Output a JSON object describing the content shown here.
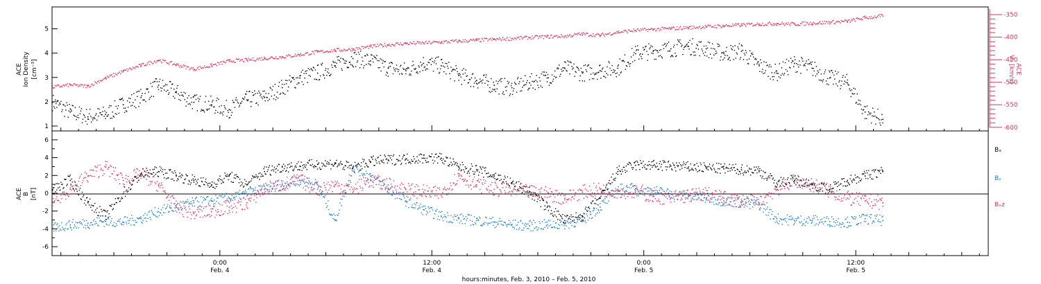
{
  "xaxis": {
    "title": "hours:minutes, Feb.  3, 2010 – Feb.  5, 2010",
    "ticks": [
      {
        "t": 24,
        "time": "0:00",
        "date": "Feb. 4"
      },
      {
        "t": 36,
        "time": "12:00",
        "date": "Feb. 4"
      },
      {
        "t": 48,
        "time": "0:00",
        "date": "Feb. 5"
      },
      {
        "t": 60,
        "time": "12:00",
        "date": "Feb. 5"
      }
    ],
    "range_hours": [
      14.5,
      67.5
    ]
  },
  "colors": {
    "black": "#000000",
    "pink": "#e8315f",
    "blue": "#1e7fd0"
  },
  "top_panel": {
    "left_label_1": "ACE",
    "left_label_2": "Ion Density",
    "left_unit": "[cm⁻³]",
    "right_label_1": "ACE",
    "right_label_2": "Vₓ [km/s]",
    "left_ticks": [
      "1",
      "2",
      "3",
      "4",
      "5"
    ],
    "right_ticks": [
      "-350",
      "-400",
      "-450",
      "-500",
      "-550",
      "-600"
    ]
  },
  "bottom_panel": {
    "label_1": "ACE",
    "label_2": "B",
    "label_unit": "[nT]",
    "ticks": [
      "6",
      "4",
      "2",
      "0",
      "-2",
      "-4",
      "-6"
    ],
    "legend": [
      {
        "name": "Bₓ",
        "color": "#000000"
      },
      {
        "name": "Bᵧ",
        "color": "#1e7fd0"
      },
      {
        "name": "Bₓz",
        "color": "#e8315f"
      }
    ]
  },
  "chart_data": [
    {
      "type": "scatter",
      "title": "",
      "xlabel": "hours:minutes, Feb.  3, 2010 – Feb.  5, 2010",
      "ylabel": "ACE Ion Density [cm⁻³]",
      "y2label": "ACE Vx [km/s]",
      "ylim": [
        0.8,
        5.9
      ],
      "y2lim": [
        -608,
        -333
      ],
      "series": [
        {
          "name": "Ion Density",
          "axis": "left",
          "color": "#000000",
          "x": [
            14.5,
            15.5,
            16.5,
            17.5,
            18.5,
            19.5,
            20.5,
            21.5,
            22.5,
            23.5,
            24.5,
            25.5,
            26.5,
            27.5,
            28.5,
            29.5,
            30.5,
            31.5,
            32.5,
            33.5,
            34.5,
            35.5,
            36.5,
            37.5,
            38.5,
            39.5,
            40.5,
            41.5,
            42.5,
            43.5,
            44.5,
            45.5,
            46.5,
            47.5,
            48.5,
            49.5,
            50.5,
            51.5,
            52.5,
            53.5,
            54.5,
            55.5,
            56.5,
            57.5,
            58.5,
            59.5,
            60.5,
            61.5
          ],
          "y": [
            2.0,
            1.6,
            1.4,
            1.5,
            1.9,
            2.2,
            2.7,
            2.4,
            2.0,
            1.9,
            1.7,
            2.1,
            2.2,
            2.6,
            3.0,
            3.2,
            3.5,
            3.8,
            3.7,
            3.4,
            3.3,
            3.6,
            3.5,
            3.1,
            2.9,
            2.7,
            2.6,
            2.8,
            3.0,
            3.4,
            3.2,
            3.3,
            3.4,
            4.0,
            4.1,
            4.2,
            4.3,
            4.2,
            4.0,
            4.1,
            3.5,
            3.2,
            3.6,
            3.4,
            3.0,
            2.8,
            1.6,
            1.3
          ]
        },
        {
          "name": "Vx",
          "axis": "right",
          "color": "#e8315f",
          "x": [
            14.5,
            15.5,
            16.5,
            17.5,
            18.5,
            19.5,
            20.5,
            21.5,
            22.5,
            23.5,
            24.5,
            25.5,
            26.5,
            27.5,
            28.5,
            29.5,
            30.5,
            31.5,
            32.5,
            33.5,
            34.5,
            35.5,
            36.5,
            37.5,
            38.5,
            39.5,
            40.5,
            41.5,
            42.5,
            43.5,
            44.5,
            45.5,
            46.5,
            47.5,
            48.5,
            49.5,
            50.5,
            51.5,
            52.5,
            53.5,
            54.5,
            55.5,
            56.5,
            57.5,
            58.5,
            59.5,
            60.5,
            61.5
          ],
          "y": [
            -510,
            -505,
            -508,
            -490,
            -475,
            -462,
            -450,
            -460,
            -470,
            -462,
            -452,
            -450,
            -446,
            -443,
            -438,
            -432,
            -428,
            -426,
            -420,
            -416,
            -413,
            -412,
            -410,
            -408,
            -406,
            -404,
            -402,
            -400,
            -398,
            -397,
            -392,
            -395,
            -388,
            -384,
            -382,
            -380,
            -378,
            -376,
            -374,
            -372,
            -370,
            -369,
            -370,
            -368,
            -366,
            -364,
            -356,
            -352
          ]
        }
      ]
    },
    {
      "type": "scatter",
      "title": "",
      "xlabel": "hours:minutes, Feb.  3, 2010 – Feb.  5, 2010",
      "ylabel": "ACE B [nT]",
      "ylim": [
        -7,
        7
      ],
      "series": [
        {
          "name": "Bx",
          "color": "#000000",
          "x": [
            14.5,
            15.5,
            16.5,
            17.5,
            18.5,
            19.5,
            20.5,
            21.5,
            22.5,
            23.5,
            24.5,
            25.5,
            26.5,
            27.5,
            28.5,
            29.5,
            30.5,
            31.5,
            32.5,
            33.5,
            34.5,
            35.5,
            36.5,
            37.5,
            38.5,
            39.5,
            40.5,
            41.5,
            42.5,
            43.5,
            44.5,
            45.5,
            46.5,
            47.5,
            48.5,
            49.5,
            50.5,
            51.5,
            52.5,
            53.5,
            54.5,
            55.5,
            56.5,
            57.5,
            58.5,
            59.5,
            60.5,
            61.5
          ],
          "y": [
            0.5,
            1.5,
            -1.0,
            -2.5,
            0.0,
            2.2,
            2.5,
            2.0,
            1.5,
            1.0,
            2.0,
            1.0,
            2.5,
            3.0,
            3.1,
            3.3,
            3.4,
            2.9,
            3.6,
            3.8,
            3.9,
            4.0,
            4.0,
            3.0,
            2.7,
            2.0,
            1.2,
            0.2,
            -1.5,
            -3.0,
            -2.5,
            -0.5,
            2.5,
            3.2,
            3.2,
            3.1,
            3.0,
            2.9,
            2.8,
            2.7,
            2.6,
            1.2,
            1.5,
            1.0,
            0.5,
            1.5,
            2.0,
            2.5
          ]
        },
        {
          "name": "By",
          "color": "#1e7fd0",
          "x": [
            14.5,
            15.5,
            16.5,
            17.5,
            18.5,
            19.5,
            20.5,
            21.5,
            22.5,
            23.5,
            24.5,
            25.5,
            26.5,
            27.5,
            28.5,
            29.5,
            30.5,
            31.5,
            32.5,
            33.5,
            34.5,
            35.5,
            36.5,
            37.5,
            38.5,
            39.5,
            40.5,
            41.5,
            42.5,
            43.5,
            44.5,
            45.5,
            46.5,
            47.5,
            48.5,
            49.5,
            50.5,
            51.5,
            52.5,
            53.5,
            54.5,
            55.5,
            56.5,
            57.5,
            58.5,
            59.5,
            60.5,
            61.5
          ],
          "y": [
            -3.8,
            -3.5,
            -3.3,
            -3.1,
            -3.2,
            -2.8,
            -2.0,
            -1.5,
            -1.0,
            -0.8,
            -0.5,
            0.0,
            0.5,
            1.0,
            1.5,
            1.0,
            -3.0,
            3.0,
            2.0,
            0.5,
            -0.8,
            -1.8,
            -2.5,
            -2.8,
            -3.0,
            -3.2,
            -3.5,
            -3.6,
            -3.5,
            -3.4,
            -3.0,
            -1.5,
            0.5,
            0.6,
            0.3,
            0.0,
            -0.3,
            -0.5,
            -0.8,
            -1.0,
            -1.2,
            -2.8,
            -3.0,
            -3.0,
            -3.1,
            -3.2,
            -2.8,
            -3.0
          ]
        },
        {
          "name": "Bz",
          "color": "#e8315f",
          "x": [
            14.5,
            15.5,
            16.5,
            17.5,
            18.5,
            19.5,
            20.5,
            21.5,
            22.5,
            23.5,
            24.5,
            25.5,
            26.5,
            27.5,
            28.5,
            29.5,
            30.5,
            31.5,
            32.5,
            33.5,
            34.5,
            35.5,
            36.5,
            37.5,
            38.5,
            39.5,
            40.5,
            41.5,
            42.5,
            43.5,
            44.5,
            45.5,
            46.5,
            47.5,
            48.5,
            49.5,
            50.5,
            51.5,
            52.5,
            53.5,
            54.5,
            55.5,
            56.5,
            57.5,
            58.5,
            59.5,
            60.5,
            61.5
          ],
          "y": [
            -1.0,
            0.5,
            2.0,
            3.0,
            1.5,
            2.2,
            1.0,
            -1.5,
            -2.2,
            -2.0,
            -1.5,
            -1.0,
            0.5,
            1.0,
            1.5,
            0.5,
            1.0,
            0.5,
            1.5,
            1.0,
            0.5,
            0.2,
            0.0,
            2.0,
            1.0,
            0.5,
            0.3,
            0.2,
            0.0,
            -0.5,
            0.2,
            0.5,
            0.3,
            0.2,
            -0.3,
            -0.5,
            -0.2,
            0.0,
            -0.5,
            -0.8,
            -1.0,
            0.5,
            1.5,
            1.0,
            0.3,
            -0.5,
            -0.8,
            -1.0
          ]
        }
      ]
    }
  ]
}
